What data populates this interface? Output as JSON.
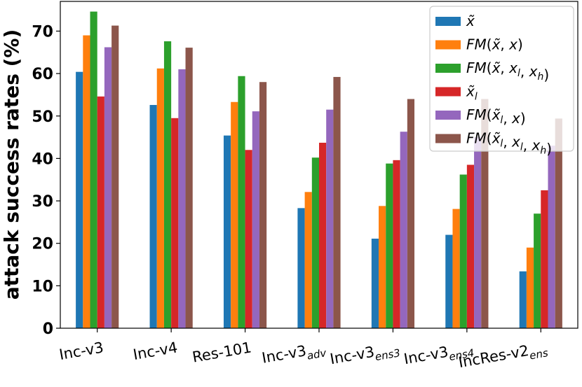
{
  "chart_data": {
    "type": "bar",
    "title": "",
    "xlabel": "",
    "ylabel": "attack success rates (%)",
    "ylim": [
      0,
      77
    ],
    "yticks": [
      0,
      10,
      20,
      30,
      40,
      50,
      60,
      70
    ],
    "grid": false,
    "legend_position": "top-right",
    "categories": [
      {
        "base": "Inc-v3",
        "sub": ""
      },
      {
        "base": "Inc-v4",
        "sub": ""
      },
      {
        "base": "Res-101",
        "sub": ""
      },
      {
        "base": "Inc-v3",
        "sub": "adv"
      },
      {
        "base": "Inc-v3",
        "sub": "ens3"
      },
      {
        "base": "Inc-v3",
        "sub": "ens4"
      },
      {
        "base": "IncRes-v2",
        "sub": "ens"
      }
    ],
    "series": [
      {
        "name": "x̃",
        "color": "#1f77b4",
        "values": [
          60.4,
          52.6,
          45.4,
          28.3,
          21.1,
          22.0,
          13.4
        ]
      },
      {
        "name": "FM(x̃, x)",
        "color": "#ff7f0e",
        "values": [
          69.0,
          61.2,
          53.3,
          32.1,
          28.8,
          28.1,
          19.0
        ]
      },
      {
        "name": "FM(x̃, xl, xh)",
        "color": "#2ca02c",
        "values": [
          74.6,
          67.6,
          59.4,
          40.2,
          38.8,
          36.2,
          27.0
        ]
      },
      {
        "name": "x̃l",
        "color": "#d62728",
        "values": [
          54.6,
          49.5,
          42.0,
          43.7,
          39.6,
          38.5,
          32.5
        ]
      },
      {
        "name": "FM(x̃l, x)",
        "color": "#9467bd",
        "values": [
          66.2,
          61.0,
          51.1,
          51.5,
          46.3,
          45.0,
          43.0
        ]
      },
      {
        "name": "FM(x̃l, xl, xh)",
        "color": "#8c564b",
        "values": [
          71.3,
          66.1,
          58.0,
          59.2,
          54.0,
          54.0,
          49.4
        ]
      }
    ]
  }
}
